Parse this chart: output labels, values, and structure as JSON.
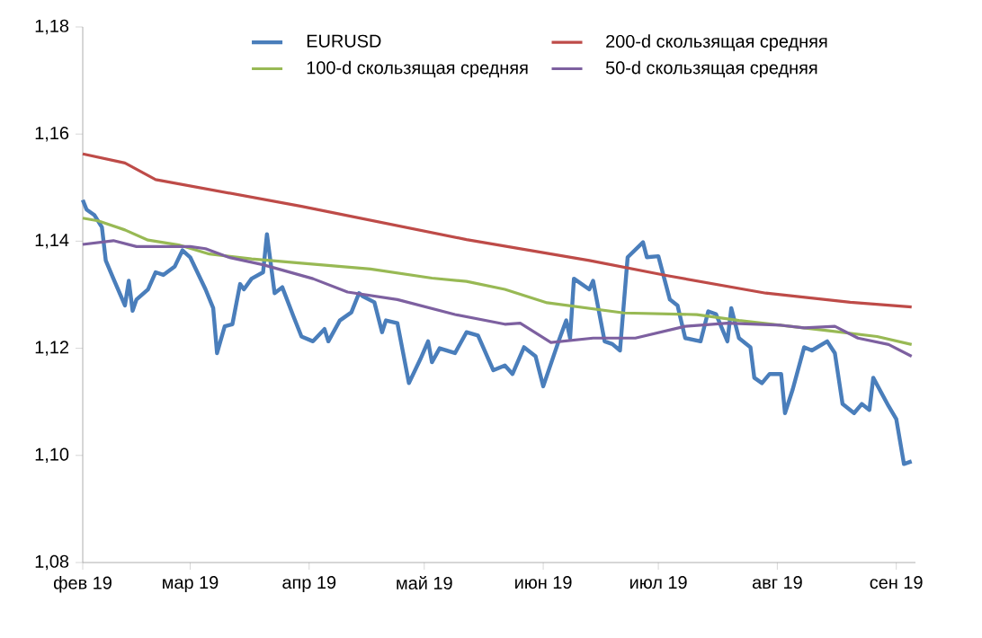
{
  "chart_data": {
    "type": "line",
    "xlim": [
      "2019-02-01",
      "2019-09-06"
    ],
    "xticks": [
      {
        "value": "2019-02-01",
        "label": "фев 19"
      },
      {
        "value": "2019-03-01",
        "label": "мар 19"
      },
      {
        "value": "2019-04-01",
        "label": "апр 19"
      },
      {
        "value": "2019-05-01",
        "label": "май 19"
      },
      {
        "value": "2019-06-01",
        "label": "июн 19"
      },
      {
        "value": "2019-07-01",
        "label": "июл 19"
      },
      {
        "value": "2019-08-01",
        "label": "авг 19"
      },
      {
        "value": "2019-09-01",
        "label": "сен 19"
      }
    ],
    "ylim": [
      1.08,
      1.18
    ],
    "yticks": [
      {
        "value": 1.08,
        "label": "1,08"
      },
      {
        "value": 1.1,
        "label": "1,10"
      },
      {
        "value": 1.12,
        "label": "1,12"
      },
      {
        "value": 1.14,
        "label": "1,14"
      },
      {
        "value": 1.16,
        "label": "1,16"
      },
      {
        "value": 1.18,
        "label": "1,18"
      }
    ],
    "legend": "top",
    "series": [
      {
        "name": "EURUSD",
        "color": "#4a7ebb",
        "x": [
          "2019-02-01",
          "2019-02-02",
          "2019-02-04",
          "2019-02-06",
          "2019-02-07",
          "2019-02-09",
          "2019-02-12",
          "2019-02-13",
          "2019-02-14",
          "2019-02-15",
          "2019-02-18",
          "2019-02-20",
          "2019-02-22",
          "2019-02-25",
          "2019-02-27",
          "2019-03-01",
          "2019-03-05",
          "2019-03-07",
          "2019-03-08",
          "2019-03-10",
          "2019-03-12",
          "2019-03-14",
          "2019-03-15",
          "2019-03-17",
          "2019-03-20",
          "2019-03-21",
          "2019-03-23",
          "2019-03-25",
          "2019-03-28",
          "2019-03-30",
          "2019-04-02",
          "2019-04-05",
          "2019-04-06",
          "2019-04-09",
          "2019-04-12",
          "2019-04-14",
          "2019-04-15",
          "2019-04-18",
          "2019-04-20",
          "2019-04-21",
          "2019-04-24",
          "2019-04-27",
          "2019-04-30",
          "2019-05-02",
          "2019-05-03",
          "2019-05-05",
          "2019-05-09",
          "2019-05-12",
          "2019-05-15",
          "2019-05-19",
          "2019-05-22",
          "2019-05-24",
          "2019-05-27",
          "2019-05-30",
          "2019-06-01",
          "2019-06-05",
          "2019-06-07",
          "2019-06-08",
          "2019-06-09",
          "2019-06-13",
          "2019-06-14",
          "2019-06-17",
          "2019-06-19",
          "2019-06-21",
          "2019-06-23",
          "2019-06-27",
          "2019-06-28",
          "2019-07-01",
          "2019-07-04",
          "2019-07-06",
          "2019-07-08",
          "2019-07-12",
          "2019-07-14",
          "2019-07-16",
          "2019-07-19",
          "2019-07-20",
          "2019-07-22",
          "2019-07-25",
          "2019-07-26",
          "2019-07-28",
          "2019-07-30",
          "2019-08-02",
          "2019-08-03",
          "2019-08-05",
          "2019-08-08",
          "2019-08-10",
          "2019-08-14",
          "2019-08-16",
          "2019-08-18",
          "2019-08-21",
          "2019-08-23",
          "2019-08-25",
          "2019-08-26",
          "2019-08-30",
          "2019-09-01",
          "2019-09-03",
          "2019-09-05"
        ],
        "values": [
          1.1477,
          1.1459,
          1.1449,
          1.1426,
          1.1364,
          1.133,
          1.128,
          1.1326,
          1.127,
          1.1291,
          1.131,
          1.1342,
          1.1337,
          1.1353,
          1.1383,
          1.137,
          1.131,
          1.1275,
          1.1191,
          1.1241,
          1.1245,
          1.132,
          1.131,
          1.133,
          1.1342,
          1.1413,
          1.1303,
          1.1314,
          1.1258,
          1.1222,
          1.1213,
          1.1236,
          1.1213,
          1.1252,
          1.1267,
          1.1303,
          1.1297,
          1.1286,
          1.123,
          1.1252,
          1.1247,
          1.1135,
          1.118,
          1.1213,
          1.1174,
          1.12,
          1.1191,
          1.123,
          1.1224,
          1.1159,
          1.1168,
          1.1152,
          1.1202,
          1.1185,
          1.1129,
          1.1213,
          1.1252,
          1.1219,
          1.133,
          1.131,
          1.1326,
          1.1213,
          1.1208,
          1.1196,
          1.137,
          1.1398,
          1.137,
          1.1372,
          1.1291,
          1.128,
          1.1219,
          1.1213,
          1.1269,
          1.1264,
          1.1213,
          1.1275,
          1.1219,
          1.1202,
          1.1145,
          1.1135,
          1.1152,
          1.1152,
          1.1079,
          1.1123,
          1.1202,
          1.1196,
          1.1213,
          1.1191,
          1.1096,
          1.1079,
          1.1096,
          1.1085,
          1.1145,
          1.1092,
          1.1068,
          1.0984,
          1.0989
        ]
      },
      {
        "name": "200-d скользящая средняя",
        "color": "#be4b48",
        "x": [
          "2019-02-01",
          "2019-02-12",
          "2019-02-20",
          "2019-03-30",
          "2019-05-12",
          "2019-06-13",
          "2019-07-03",
          "2019-07-29",
          "2019-08-20",
          "2019-09-05"
        ],
        "values": [
          1.1563,
          1.1546,
          1.1515,
          1.1465,
          1.1403,
          1.1364,
          1.1336,
          1.1303,
          1.1286,
          1.1277
        ]
      },
      {
        "name": "100-d скользящая средняя",
        "color": "#98b954",
        "x": [
          "2019-02-01",
          "2019-02-05",
          "2019-02-12",
          "2019-02-18",
          "2019-02-26",
          "2019-03-06",
          "2019-03-17",
          "2019-03-30",
          "2019-04-17",
          "2019-05-03",
          "2019-05-12",
          "2019-05-22",
          "2019-06-02",
          "2019-06-22",
          "2019-07-11",
          "2019-07-22",
          "2019-08-14",
          "2019-08-27",
          "2019-09-05"
        ],
        "values": [
          1.1443,
          1.1438,
          1.1421,
          1.1402,
          1.1393,
          1.1376,
          1.1367,
          1.1359,
          1.1348,
          1.1331,
          1.1325,
          1.131,
          1.1285,
          1.1266,
          1.1263,
          1.1252,
          1.1233,
          1.1222,
          1.1207
        ]
      },
      {
        "name": "50-d скользящая средняя",
        "color": "#7d60a0",
        "x": [
          "2019-02-01",
          "2019-02-09",
          "2019-02-15",
          "2019-03-01",
          "2019-03-05",
          "2019-03-11",
          "2019-03-20",
          "2019-04-02",
          "2019-04-11",
          "2019-04-24",
          "2019-05-09",
          "2019-05-22",
          "2019-05-26",
          "2019-06-03",
          "2019-06-14",
          "2019-06-25",
          "2019-07-08",
          "2019-07-19",
          "2019-08-02",
          "2019-08-08",
          "2019-08-16",
          "2019-08-22",
          "2019-08-30",
          "2019-09-05"
        ],
        "values": [
          1.1394,
          1.1401,
          1.139,
          1.139,
          1.1386,
          1.137,
          1.1356,
          1.133,
          1.1305,
          1.1291,
          1.1263,
          1.1245,
          1.1247,
          1.1211,
          1.1219,
          1.1219,
          1.1241,
          1.1247,
          1.1243,
          1.1238,
          1.1241,
          1.1219,
          1.1207,
          1.1185
        ]
      }
    ]
  }
}
